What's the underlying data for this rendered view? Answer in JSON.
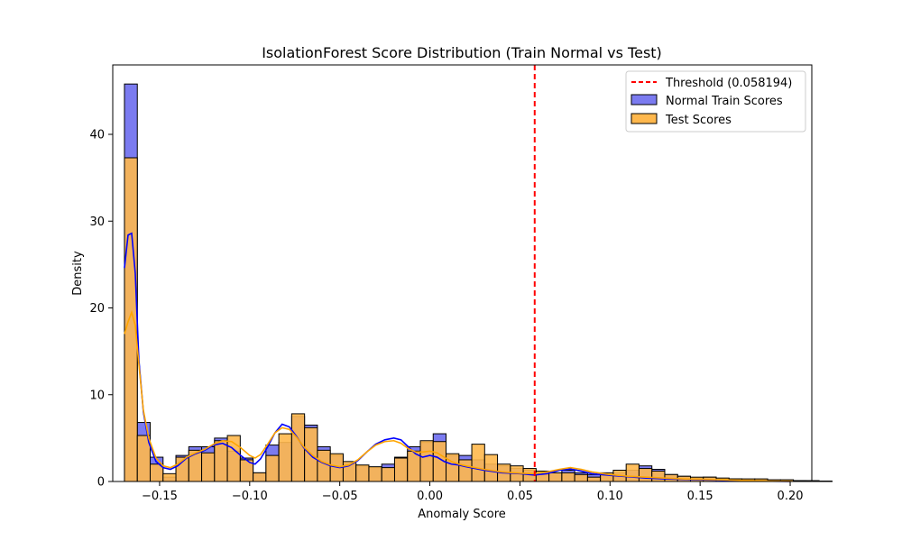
{
  "chart_data": {
    "type": "histogram",
    "title": "IsolationForest Score Distribution (Train Normal vs Test)",
    "xlabel": "Anomaly Score",
    "ylabel": "Density",
    "xlim": [
      -0.176,
      0.212
    ],
    "ylim": [
      0,
      48
    ],
    "x_ticks": [
      -0.15,
      -0.1,
      -0.05,
      0.0,
      0.05,
      0.1,
      0.15,
      0.2
    ],
    "x_tick_labels": [
      "−0.15",
      "−0.10",
      "−0.05",
      "0.00",
      "0.05",
      "0.10",
      "0.15",
      "0.20"
    ],
    "y_ticks": [
      0,
      10,
      20,
      30,
      40
    ],
    "y_tick_labels": [
      "0",
      "10",
      "20",
      "30",
      "40"
    ],
    "bin_start": -0.1695,
    "bin_width": 0.00714,
    "threshold": {
      "value": 0.058194,
      "label": "Threshold (0.058194)",
      "color": "#ff0000"
    },
    "legend_position": "top-right",
    "series": [
      {
        "name": "Normal Train Scores",
        "color": "#0000ff",
        "fill": "#7b7bf0",
        "values": [
          45.8,
          6.8,
          2.8,
          0.5,
          3.0,
          4.0,
          4.0,
          5.0,
          3.5,
          2.7,
          1.0,
          4.2,
          4.5,
          7.5,
          6.5,
          4.0,
          3.0,
          2.0,
          1.8,
          1.6,
          2.0,
          2.8,
          4.0,
          4.5,
          5.5,
          3.0,
          3.0,
          2.5,
          2.0,
          1.8,
          1.5,
          1.3,
          0.8,
          1.0,
          1.3,
          1.0,
          0.8,
          0.7,
          1.0,
          1.3,
          1.8,
          1.4,
          0.8,
          0.6,
          0.4,
          0.5,
          0.3,
          0.3,
          0.2,
          0.2,
          0.1,
          0.1,
          0.1,
          0.05,
          0.02
        ],
        "kde": [
          [
            -0.1695,
            24.6
          ],
          [
            -0.1675,
            28.4
          ],
          [
            -0.1655,
            28.6
          ],
          [
            -0.1635,
            24.0
          ],
          [
            -0.1615,
            14.0
          ],
          [
            -0.159,
            8.0
          ],
          [
            -0.156,
            4.5
          ],
          [
            -0.152,
            2.3
          ],
          [
            -0.148,
            1.6
          ],
          [
            -0.144,
            1.4
          ],
          [
            -0.14,
            1.8
          ],
          [
            -0.135,
            2.7
          ],
          [
            -0.13,
            3.2
          ],
          [
            -0.125,
            3.6
          ],
          [
            -0.12,
            4.2
          ],
          [
            -0.115,
            4.4
          ],
          [
            -0.11,
            3.9
          ],
          [
            -0.105,
            3.0
          ],
          [
            -0.1,
            2.2
          ],
          [
            -0.097,
            2.0
          ],
          [
            -0.094,
            2.6
          ],
          [
            -0.09,
            4.0
          ],
          [
            -0.086,
            5.6
          ],
          [
            -0.082,
            6.6
          ],
          [
            -0.078,
            6.3
          ],
          [
            -0.074,
            5.2
          ],
          [
            -0.07,
            3.9
          ],
          [
            -0.065,
            2.8
          ],
          [
            -0.06,
            2.2
          ],
          [
            -0.055,
            1.8
          ],
          [
            -0.05,
            1.6
          ],
          [
            -0.045,
            1.8
          ],
          [
            -0.04,
            2.4
          ],
          [
            -0.035,
            3.4
          ],
          [
            -0.03,
            4.3
          ],
          [
            -0.025,
            4.8
          ],
          [
            -0.02,
            5.0
          ],
          [
            -0.016,
            4.8
          ],
          [
            -0.012,
            4.0
          ],
          [
            -0.008,
            3.2
          ],
          [
            -0.004,
            2.8
          ],
          [
            0.0,
            3.0
          ],
          [
            0.004,
            2.8
          ],
          [
            0.008,
            2.3
          ],
          [
            0.012,
            2.0
          ],
          [
            0.016,
            1.9
          ],
          [
            0.02,
            1.7
          ],
          [
            0.03,
            1.3
          ],
          [
            0.04,
            1.0
          ],
          [
            0.05,
            0.9
          ],
          [
            0.058,
            0.75
          ],
          [
            0.065,
            0.9
          ],
          [
            0.072,
            1.3
          ],
          [
            0.078,
            1.45
          ],
          [
            0.084,
            1.2
          ],
          [
            0.09,
            0.9
          ],
          [
            0.1,
            0.7
          ],
          [
            0.11,
            0.55
          ],
          [
            0.12,
            0.4
          ],
          [
            0.13,
            0.3
          ],
          [
            0.14,
            0.25
          ],
          [
            0.15,
            0.2
          ],
          [
            0.16,
            0.15
          ],
          [
            0.17,
            0.1
          ],
          [
            0.18,
            0.06
          ],
          [
            0.19,
            0.03
          ],
          [
            0.2,
            0.01
          ]
        ]
      },
      {
        "name": "Test Scores",
        "color": "#ffa500",
        "fill": "#ffb84d",
        "values": [
          37.3,
          5.3,
          2.0,
          0.9,
          2.8,
          3.6,
          3.3,
          4.7,
          5.3,
          2.5,
          1.0,
          3.0,
          5.5,
          7.8,
          6.2,
          3.6,
          3.2,
          2.3,
          1.9,
          1.7,
          1.6,
          2.7,
          3.5,
          4.7,
          4.6,
          3.2,
          2.5,
          4.3,
          3.1,
          2.0,
          1.8,
          1.5,
          1.2,
          1.0,
          1.0,
          0.8,
          0.5,
          1.0,
          1.3,
          2.0,
          1.5,
          1.2,
          0.8,
          0.6,
          0.5,
          0.5,
          0.4,
          0.3,
          0.3,
          0.3,
          0.2,
          0.2,
          0.1,
          0.1,
          0.05
        ],
        "kde": [
          [
            -0.1695,
            17.0
          ],
          [
            -0.1675,
            18.4
          ],
          [
            -0.1655,
            19.5
          ],
          [
            -0.1635,
            18.0
          ],
          [
            -0.1615,
            13.5
          ],
          [
            -0.159,
            8.2
          ],
          [
            -0.156,
            5.0
          ],
          [
            -0.152,
            2.7
          ],
          [
            -0.148,
            1.8
          ],
          [
            -0.144,
            1.6
          ],
          [
            -0.14,
            2.0
          ],
          [
            -0.135,
            2.8
          ],
          [
            -0.13,
            3.3
          ],
          [
            -0.125,
            3.7
          ],
          [
            -0.12,
            4.3
          ],
          [
            -0.115,
            4.7
          ],
          [
            -0.11,
            4.6
          ],
          [
            -0.105,
            3.9
          ],
          [
            -0.1,
            3.0
          ],
          [
            -0.097,
            2.7
          ],
          [
            -0.094,
            3.1
          ],
          [
            -0.09,
            4.3
          ],
          [
            -0.086,
            5.6
          ],
          [
            -0.082,
            6.2
          ],
          [
            -0.078,
            6.0
          ],
          [
            -0.074,
            5.1
          ],
          [
            -0.07,
            4.0
          ],
          [
            -0.065,
            3.0
          ],
          [
            -0.06,
            2.3
          ],
          [
            -0.055,
            1.9
          ],
          [
            -0.05,
            1.7
          ],
          [
            -0.045,
            1.9
          ],
          [
            -0.04,
            2.5
          ],
          [
            -0.035,
            3.4
          ],
          [
            -0.03,
            4.2
          ],
          [
            -0.025,
            4.6
          ],
          [
            -0.02,
            4.7
          ],
          [
            -0.016,
            4.4
          ],
          [
            -0.012,
            3.8
          ],
          [
            -0.008,
            3.4
          ],
          [
            -0.004,
            3.4
          ],
          [
            0.0,
            3.5
          ],
          [
            0.004,
            3.3
          ],
          [
            0.008,
            2.8
          ],
          [
            0.012,
            2.3
          ],
          [
            0.016,
            2.0
          ],
          [
            0.02,
            1.8
          ],
          [
            0.03,
            1.4
          ],
          [
            0.04,
            1.1
          ],
          [
            0.05,
            0.95
          ],
          [
            0.058,
            0.9
          ],
          [
            0.065,
            1.1
          ],
          [
            0.072,
            1.4
          ],
          [
            0.078,
            1.6
          ],
          [
            0.084,
            1.4
          ],
          [
            0.09,
            1.1
          ],
          [
            0.1,
            0.8
          ],
          [
            0.11,
            0.6
          ],
          [
            0.12,
            0.5
          ],
          [
            0.13,
            0.4
          ],
          [
            0.14,
            0.3
          ],
          [
            0.15,
            0.25
          ],
          [
            0.16,
            0.2
          ],
          [
            0.17,
            0.15
          ],
          [
            0.18,
            0.1
          ],
          [
            0.19,
            0.05
          ],
          [
            0.2,
            0.02
          ]
        ]
      }
    ]
  }
}
